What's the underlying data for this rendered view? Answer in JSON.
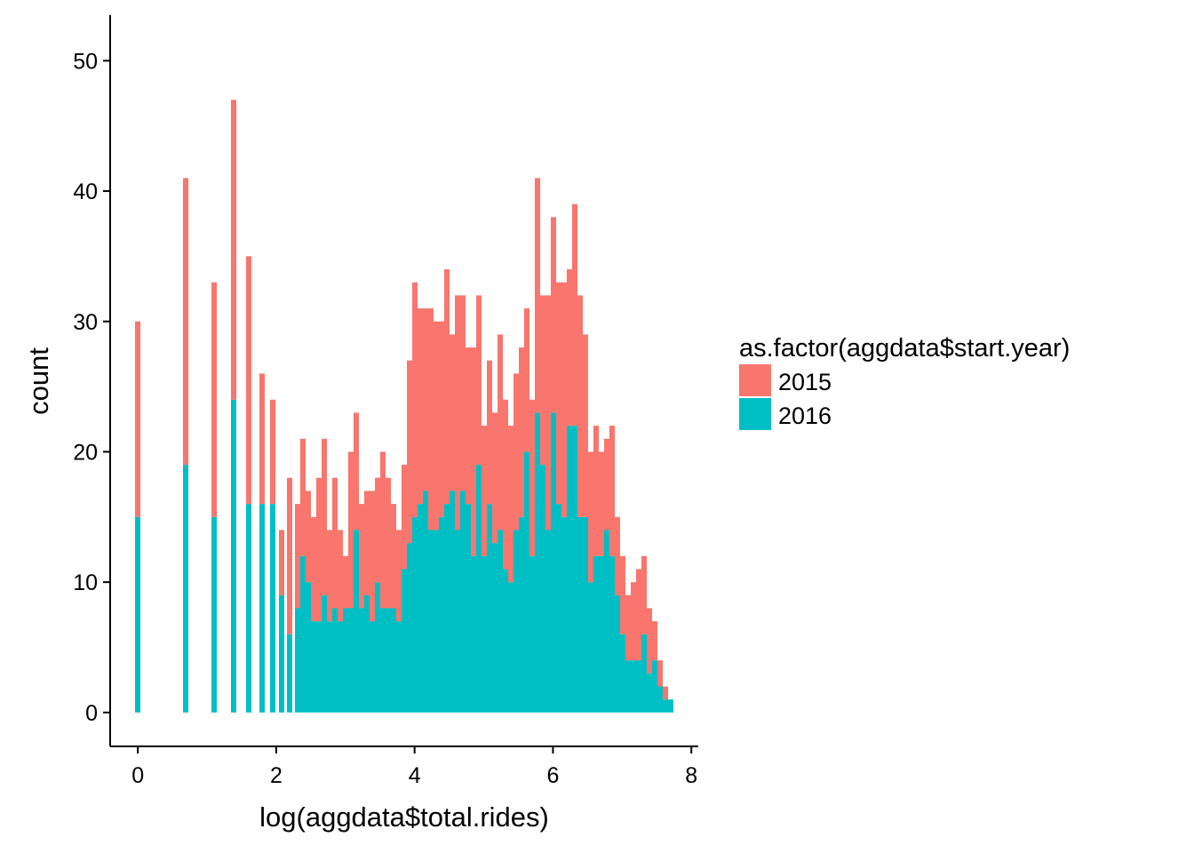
{
  "chart_data": {
    "type": "bar",
    "subtype": "stacked-histogram",
    "xlabel": "log(aggdata$total.rides)",
    "ylabel": "count",
    "xlim": [
      -0.4,
      8.1
    ],
    "ylim": [
      -2.6,
      53.5
    ],
    "x_ticks": [
      0,
      2,
      4,
      6,
      8
    ],
    "y_ticks": [
      0,
      10,
      20,
      30,
      40,
      50
    ],
    "bin_width": 0.077,
    "grid": false,
    "legend": {
      "title": "as.factor(aggdata$start.year)",
      "position": "right",
      "entries": [
        {
          "name": "2015",
          "color": "#F8766D"
        },
        {
          "name": "2016",
          "color": "#00BFC4"
        }
      ]
    },
    "x": [
      0.0,
      0.693,
      1.099,
      1.386,
      1.609,
      1.792,
      1.946,
      2.079,
      2.197,
      2.31,
      2.387,
      2.464,
      2.541,
      2.618,
      2.695,
      2.772,
      2.849,
      2.926,
      3.003,
      3.08,
      3.157,
      3.234,
      3.311,
      3.388,
      3.465,
      3.542,
      3.619,
      3.696,
      3.773,
      3.85,
      3.927,
      4.004,
      4.081,
      4.158,
      4.235,
      4.312,
      4.389,
      4.466,
      4.543,
      4.62,
      4.697,
      4.774,
      4.851,
      4.928,
      5.005,
      5.082,
      5.159,
      5.236,
      5.313,
      5.39,
      5.467,
      5.544,
      5.621,
      5.698,
      5.775,
      5.852,
      5.929,
      6.006,
      6.083,
      6.16,
      6.237,
      6.314,
      6.391,
      6.468,
      6.545,
      6.622,
      6.699,
      6.776,
      6.853,
      6.93,
      7.007,
      7.084,
      7.161,
      7.238,
      7.315,
      7.392,
      7.469,
      7.546,
      7.623,
      7.7
    ],
    "series": [
      {
        "name": "2015",
        "values": [
          15,
          22,
          18,
          23,
          19,
          10,
          8,
          5,
          12,
          8,
          9,
          7,
          8,
          11,
          12,
          7,
          10,
          7,
          4,
          12,
          9,
          8,
          8,
          10,
          8,
          12,
          10,
          8,
          7,
          8,
          14,
          18,
          15,
          14,
          17,
          16,
          15,
          18,
          12,
          18,
          15,
          12,
          16,
          13,
          10,
          11,
          10,
          15,
          13,
          12,
          12,
          13,
          11,
          12,
          18,
          13,
          18,
          15,
          17,
          18,
          12,
          17,
          17,
          14,
          10,
          10,
          8,
          7,
          10,
          6,
          6,
          5,
          6,
          7,
          6,
          5,
          3,
          2,
          1,
          0
        ]
      },
      {
        "name": "2016",
        "values": [
          15,
          19,
          15,
          24,
          16,
          16,
          16,
          9,
          6,
          8,
          12,
          10,
          7,
          7,
          9,
          7,
          8,
          7,
          8,
          8,
          14,
          8,
          9,
          7,
          10,
          8,
          8,
          8,
          7,
          11,
          13,
          15,
          16,
          17,
          14,
          14,
          15,
          16,
          17,
          14,
          17,
          16,
          12,
          19,
          12,
          16,
          13,
          14,
          11,
          10,
          14,
          15,
          20,
          12,
          23,
          19,
          14,
          23,
          16,
          15,
          22,
          22,
          15,
          15,
          10,
          12,
          12,
          14,
          12,
          9,
          6,
          4,
          4,
          4,
          6,
          3,
          4,
          2,
          1,
          1
        ]
      }
    ]
  }
}
